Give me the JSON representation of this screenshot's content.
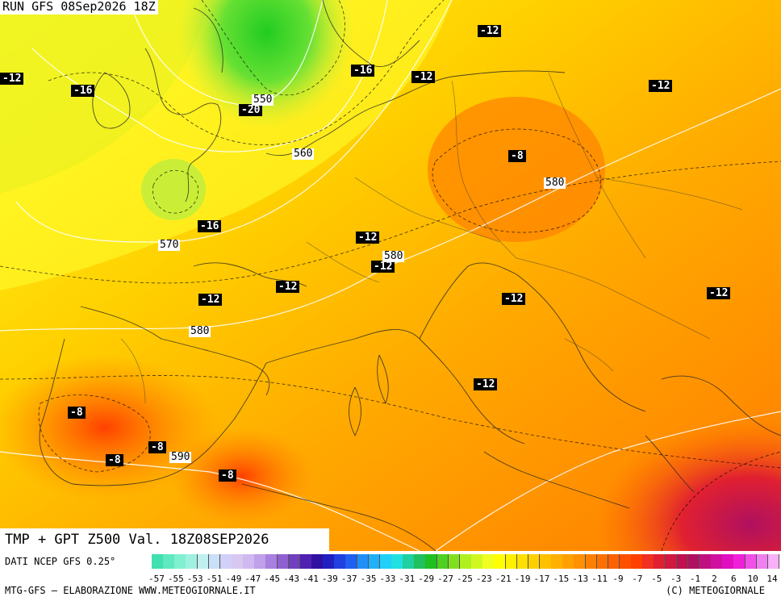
{
  "header": {
    "run_label": "RUN GFS 08Sep2026 18Z"
  },
  "title": "TMP + GPT Z500 Val. 18Z08SEP2026",
  "footer": {
    "source": "DATI NCEP GFS 0.25°",
    "credit_left": "MTG-GFS – ELABORAZIONE WWW.METEOGIORNALE.IT",
    "credit_right": "(C) METEOGIORNALE"
  },
  "colors": {
    "green_dark": "#22cc22",
    "green_light": "#88ee44",
    "yellow": "#ffff00",
    "yellow_orange": "#ffd000",
    "orange": "#ffa500",
    "orange_dark": "#ff8000",
    "red_orange": "#ff5500",
    "red": "#e01030",
    "magenta": "#b01060"
  },
  "temperature_labels": [
    {
      "text": "-12"
    },
    {
      "text": "-16"
    },
    {
      "text": "-12"
    },
    {
      "text": "-16"
    },
    {
      "text": "-12"
    },
    {
      "text": "-20"
    },
    {
      "text": "-12"
    },
    {
      "text": "-8"
    },
    {
      "text": "-16"
    },
    {
      "text": "-12"
    },
    {
      "text": "-12"
    },
    {
      "text": "-12"
    },
    {
      "text": "-12"
    },
    {
      "text": "-12"
    },
    {
      "text": "-12"
    },
    {
      "text": "-12"
    },
    {
      "text": "-8"
    },
    {
      "text": "-8"
    },
    {
      "text": "-8"
    },
    {
      "text": "-8"
    }
  ],
  "geopotential_labels": [
    {
      "text": "550"
    },
    {
      "text": "560"
    },
    {
      "text": "580"
    },
    {
      "text": "570"
    },
    {
      "text": "580"
    },
    {
      "text": "580"
    },
    {
      "text": "590"
    }
  ],
  "color_scale": {
    "ticks": [
      "-57",
      "-55",
      "-53",
      "-51",
      "-49",
      "-47",
      "-45",
      "-43",
      "-41",
      "-39",
      "-37",
      "-35",
      "-33",
      "-31",
      "-29",
      "-27",
      "-25",
      "-23",
      "-21",
      "-19",
      "-17",
      "-15",
      "-13",
      "-11",
      "-9",
      "-7",
      "-5",
      "-3",
      "-1",
      "2",
      "6",
      "10",
      "14"
    ],
    "swatches": [
      "#40e0b0",
      "#60e8c0",
      "#80f0d0",
      "#a0f0e0",
      "#c0f0f0",
      "#c8e0f8",
      "#d0d0f8",
      "#d8c8f0",
      "#d0b8f0",
      "#c0a0e8",
      "#a880e0",
      "#9060d0",
      "#7040c0",
      "#5020b0",
      "#3010a0",
      "#2020c0",
      "#2040e0",
      "#2060f0",
      "#2090f8",
      "#20b0f8",
      "#20d0f8",
      "#20e0e0",
      "#20d0a0",
      "#20c060",
      "#20c020",
      "#50d020",
      "#80e020",
      "#b0f020",
      "#d0f820",
      "#f0ff20",
      "#ffff00",
      "#fff000",
      "#ffe000",
      "#ffd000",
      "#ffc000",
      "#ffb000",
      "#ffa000",
      "#ff9000",
      "#ff8000",
      "#ff7000",
      "#ff6000",
      "#ff5000",
      "#ff4000",
      "#f03020",
      "#e02030",
      "#d01840",
      "#c01050",
      "#b01060",
      "#c01080",
      "#d010a0",
      "#e010c0",
      "#f020d8",
      "#f050e8",
      "#f080f0",
      "#f8b0f8"
    ]
  }
}
